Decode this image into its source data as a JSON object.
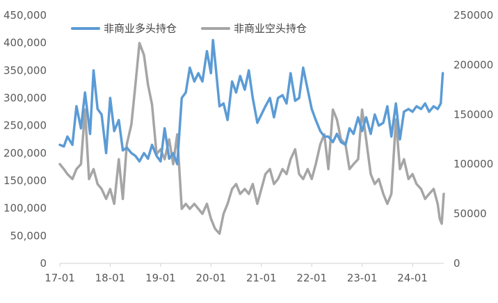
{
  "chart_data": {
    "type": "line",
    "x_labels": [
      "17-01",
      "18-01",
      "19-01",
      "20-01",
      "21-01",
      "22-01",
      "23-01",
      "24-01"
    ],
    "x_range": [
      2017.0,
      2024.62
    ],
    "y_left": {
      "ticks": [
        "0",
        "50,000",
        "100,000",
        "150,000",
        "200,000",
        "250,000",
        "300,000",
        "350,000",
        "400,000",
        "450,000"
      ],
      "range": [
        0,
        450000
      ]
    },
    "y_right": {
      "ticks": [
        "0",
        "50000",
        "100000",
        "150000",
        "200000",
        "250000"
      ],
      "range": [
        0,
        250000
      ]
    },
    "grid": false,
    "legend_position": "top-left",
    "series": [
      {
        "name": "非商业多头持仓",
        "axis": "left",
        "color": "#5b9bd5",
        "x": [
          2017.0,
          2017.08,
          2017.15,
          2017.25,
          2017.33,
          2017.42,
          2017.5,
          2017.6,
          2017.67,
          2017.75,
          2017.83,
          2017.92,
          2018.0,
          2018.08,
          2018.17,
          2018.25,
          2018.33,
          2018.42,
          2018.5,
          2018.58,
          2018.67,
          2018.75,
          2018.83,
          2018.92,
          2019.0,
          2019.08,
          2019.17,
          2019.25,
          2019.33,
          2019.42,
          2019.5,
          2019.58,
          2019.67,
          2019.75,
          2019.83,
          2019.92,
          2020.0,
          2020.04,
          2020.08,
          2020.17,
          2020.25,
          2020.33,
          2020.42,
          2020.5,
          2020.58,
          2020.67,
          2020.75,
          2020.83,
          2020.92,
          2021.0,
          2021.08,
          2021.17,
          2021.25,
          2021.33,
          2021.42,
          2021.5,
          2021.58,
          2021.67,
          2021.75,
          2021.83,
          2021.92,
          2022.0,
          2022.08,
          2022.17,
          2022.25,
          2022.33,
          2022.42,
          2022.5,
          2022.58,
          2022.67,
          2022.75,
          2022.83,
          2022.92,
          2023.0,
          2023.08,
          2023.17,
          2023.25,
          2023.33,
          2023.42,
          2023.5,
          2023.58,
          2023.67,
          2023.75,
          2023.83,
          2023.92,
          2024.0,
          2024.08,
          2024.17,
          2024.25,
          2024.33,
          2024.42,
          2024.5,
          2024.56,
          2024.6
        ],
        "y": [
          215000,
          212000,
          230000,
          215000,
          285000,
          245000,
          310000,
          235000,
          350000,
          280000,
          270000,
          200000,
          300000,
          240000,
          260000,
          205000,
          210000,
          200000,
          195000,
          185000,
          200000,
          190000,
          215000,
          195000,
          185000,
          245000,
          190000,
          200000,
          180000,
          300000,
          310000,
          355000,
          330000,
          345000,
          330000,
          385000,
          345000,
          405000,
          370000,
          285000,
          290000,
          260000,
          330000,
          310000,
          340000,
          315000,
          350000,
          300000,
          255000,
          270000,
          285000,
          300000,
          265000,
          300000,
          305000,
          290000,
          345000,
          295000,
          300000,
          355000,
          315000,
          280000,
          260000,
          240000,
          230000,
          230000,
          220000,
          235000,
          220000,
          215000,
          245000,
          235000,
          265000,
          240000,
          265000,
          235000,
          270000,
          250000,
          255000,
          285000,
          230000,
          290000,
          225000,
          275000,
          280000,
          275000,
          285000,
          280000,
          290000,
          275000,
          285000,
          280000,
          290000,
          345000
        ]
      },
      {
        "name": "非商业空头持仓",
        "axis": "right",
        "color": "#a5a5a5",
        "x": [
          2017.0,
          2017.08,
          2017.15,
          2017.25,
          2017.33,
          2017.42,
          2017.5,
          2017.58,
          2017.67,
          2017.75,
          2017.83,
          2017.92,
          2018.0,
          2018.08,
          2018.17,
          2018.25,
          2018.33,
          2018.42,
          2018.5,
          2018.58,
          2018.67,
          2018.75,
          2018.83,
          2018.92,
          2019.0,
          2019.08,
          2019.17,
          2019.25,
          2019.33,
          2019.42,
          2019.5,
          2019.58,
          2019.67,
          2019.75,
          2019.83,
          2019.92,
          2020.0,
          2020.08,
          2020.17,
          2020.25,
          2020.33,
          2020.42,
          2020.5,
          2020.58,
          2020.67,
          2020.75,
          2020.83,
          2020.92,
          2021.0,
          2021.08,
          2021.17,
          2021.25,
          2021.33,
          2021.42,
          2021.5,
          2021.58,
          2021.67,
          2021.75,
          2021.83,
          2021.92,
          2022.0,
          2022.08,
          2022.17,
          2022.25,
          2022.33,
          2022.42,
          2022.5,
          2022.58,
          2022.67,
          2022.75,
          2022.83,
          2022.92,
          2023.0,
          2023.08,
          2023.17,
          2023.25,
          2023.33,
          2023.42,
          2023.5,
          2023.58,
          2023.67,
          2023.75,
          2023.83,
          2023.92,
          2024.0,
          2024.08,
          2024.17,
          2024.25,
          2024.33,
          2024.42,
          2024.5,
          2024.54,
          2024.58,
          2024.62
        ],
        "y": [
          100000,
          95000,
          90000,
          85000,
          95000,
          100000,
          155000,
          85000,
          95000,
          80000,
          75000,
          65000,
          75000,
          60000,
          105000,
          65000,
          120000,
          140000,
          180000,
          222000,
          210000,
          180000,
          160000,
          110000,
          115000,
          105000,
          125000,
          100000,
          130000,
          55000,
          60000,
          55000,
          60000,
          55000,
          50000,
          60000,
          45000,
          35000,
          30000,
          50000,
          60000,
          75000,
          80000,
          70000,
          75000,
          70000,
          80000,
          60000,
          75000,
          90000,
          95000,
          80000,
          85000,
          95000,
          90000,
          105000,
          115000,
          90000,
          85000,
          95000,
          85000,
          100000,
          120000,
          130000,
          95000,
          155000,
          145000,
          125000,
          120000,
          95000,
          100000,
          105000,
          155000,
          125000,
          90000,
          80000,
          85000,
          70000,
          60000,
          70000,
          145000,
          95000,
          105000,
          85000,
          90000,
          80000,
          75000,
          65000,
          70000,
          75000,
          60000,
          45000,
          40000,
          70000
        ]
      }
    ]
  }
}
